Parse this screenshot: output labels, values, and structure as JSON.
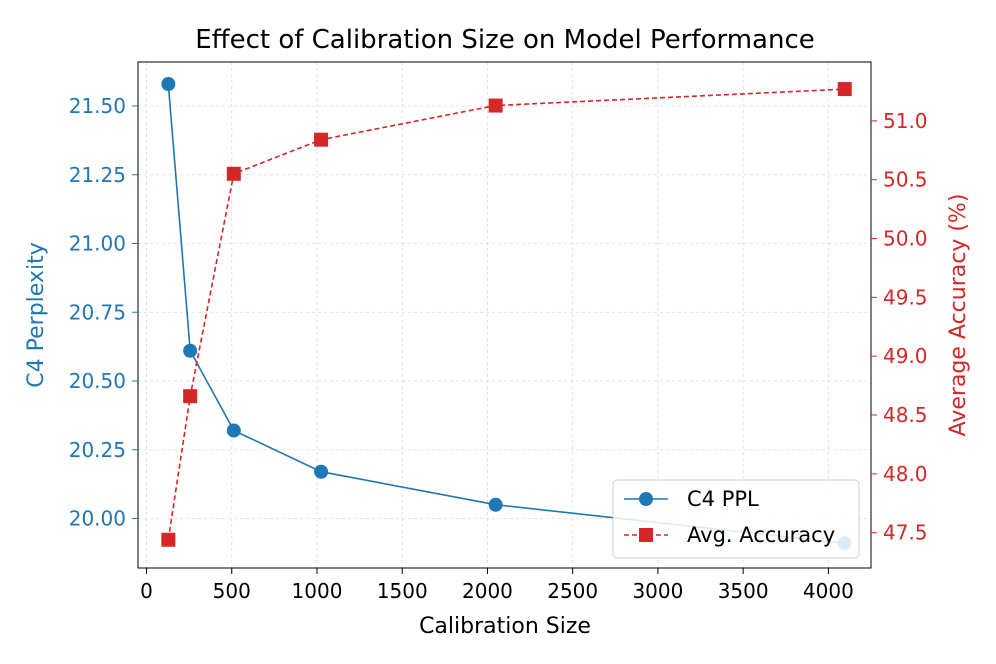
{
  "chart_data": {
    "type": "line",
    "title": "Effect of Calibration Size on Model Performance",
    "xlabel": "Calibration Size",
    "ylabel_left": "C4 Perplexity",
    "ylabel_right": "Average Accuracy (%)",
    "xlim": [
      -50,
      4250
    ],
    "ylim_left": [
      19.82,
      21.66
    ],
    "ylim_right": [
      47.2,
      51.5
    ],
    "x_ticks": [
      0,
      500,
      1000,
      1500,
      2000,
      2500,
      3000,
      3500,
      4000
    ],
    "x_tick_labels": [
      "0",
      "500",
      "1000",
      "1500",
      "2000",
      "2500",
      "3000",
      "3500",
      "4000"
    ],
    "y_left_ticks": [
      20.0,
      20.25,
      20.5,
      20.75,
      21.0,
      21.25,
      21.5
    ],
    "y_left_tick_labels": [
      "20.00",
      "20.25",
      "20.50",
      "20.75",
      "21.00",
      "21.25",
      "21.50"
    ],
    "y_right_ticks": [
      47.5,
      48.0,
      48.5,
      49.0,
      49.5,
      50.0,
      50.5,
      51.0
    ],
    "y_right_tick_labels": [
      "47.5",
      "48.0",
      "48.5",
      "49.0",
      "49.5",
      "50.0",
      "50.5",
      "51.0"
    ],
    "grid": true,
    "legend_position": "lower-right",
    "x": [
      128,
      256,
      512,
      1024,
      2048,
      4096
    ],
    "series": [
      {
        "name": "C4 PPL",
        "axis": "left",
        "color": "#1f77b4",
        "marker": "circle",
        "line_style": "solid",
        "values": [
          21.58,
          20.61,
          20.32,
          20.17,
          20.05,
          19.91
        ]
      },
      {
        "name": "Avg. Accuracy",
        "axis": "right",
        "color": "#d62728",
        "marker": "square",
        "line_style": "dashed",
        "values": [
          47.44,
          48.66,
          50.55,
          50.84,
          51.13,
          51.27
        ]
      }
    ]
  }
}
